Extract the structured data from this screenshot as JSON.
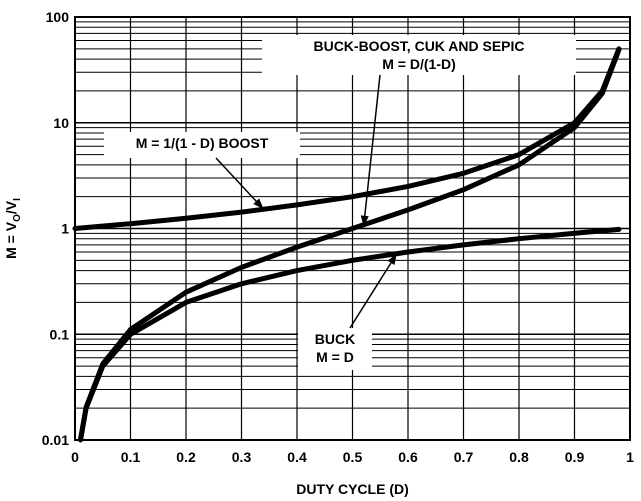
{
  "chart_data": {
    "type": "line",
    "title": "",
    "xlabel": "DUTY CYCLE (D)",
    "ylabel": {
      "main": "M = V",
      "sub1": "O",
      "mid": "/V",
      "sub2": "I"
    },
    "xlim": [
      0,
      1
    ],
    "ylim": [
      0.01,
      100
    ],
    "yscale": "log",
    "grid": true,
    "x_ticks": [
      "0",
      "0.1",
      "0.2",
      "0.3",
      "0.4",
      "0.5",
      "0.6",
      "0.7",
      "0.8",
      "0.9",
      "1"
    ],
    "y_ticks": [
      "0.01",
      "0.1",
      "1",
      "10",
      "100"
    ],
    "series": [
      {
        "name": "M = 1/(1 - D) BOOST",
        "x": [
          0,
          0.1,
          0.2,
          0.3,
          0.4,
          0.5,
          0.6,
          0.7,
          0.8,
          0.9,
          0.95,
          0.98
        ],
        "y": [
          1,
          1.11,
          1.25,
          1.43,
          1.67,
          2,
          2.5,
          3.33,
          5,
          10,
          20,
          50
        ]
      },
      {
        "name": "BUCK-BOOST, CUK AND SEPIC M = D/(1-D)",
        "x": [
          0.01,
          0.02,
          0.05,
          0.1,
          0.2,
          0.3,
          0.4,
          0.5,
          0.6,
          0.7,
          0.8,
          0.9,
          0.95,
          0.98
        ],
        "y": [
          0.0101,
          0.0204,
          0.0526,
          0.111,
          0.25,
          0.429,
          0.667,
          1,
          1.5,
          2.33,
          4,
          9,
          19,
          49
        ]
      },
      {
        "name": "BUCK M = D",
        "x": [
          0.01,
          0.02,
          0.05,
          0.1,
          0.2,
          0.3,
          0.4,
          0.5,
          0.6,
          0.7,
          0.8,
          0.9,
          0.98
        ],
        "y": [
          0.01,
          0.02,
          0.05,
          0.1,
          0.2,
          0.3,
          0.4,
          0.5,
          0.6,
          0.7,
          0.8,
          0.9,
          0.98
        ]
      }
    ],
    "annotations": [
      {
        "lines": [
          "BUCK-BOOST, CUK AND SEPIC",
          "M = D/(1-D)"
        ],
        "target": [
          0.52,
          1.04
        ]
      },
      {
        "lines": [
          "M = 1/(1 - D) BOOST"
        ],
        "target": [
          0.34,
          1.52
        ]
      },
      {
        "lines": [
          "BUCK",
          "M = D"
        ],
        "target": [
          0.58,
          0.58
        ]
      }
    ]
  }
}
